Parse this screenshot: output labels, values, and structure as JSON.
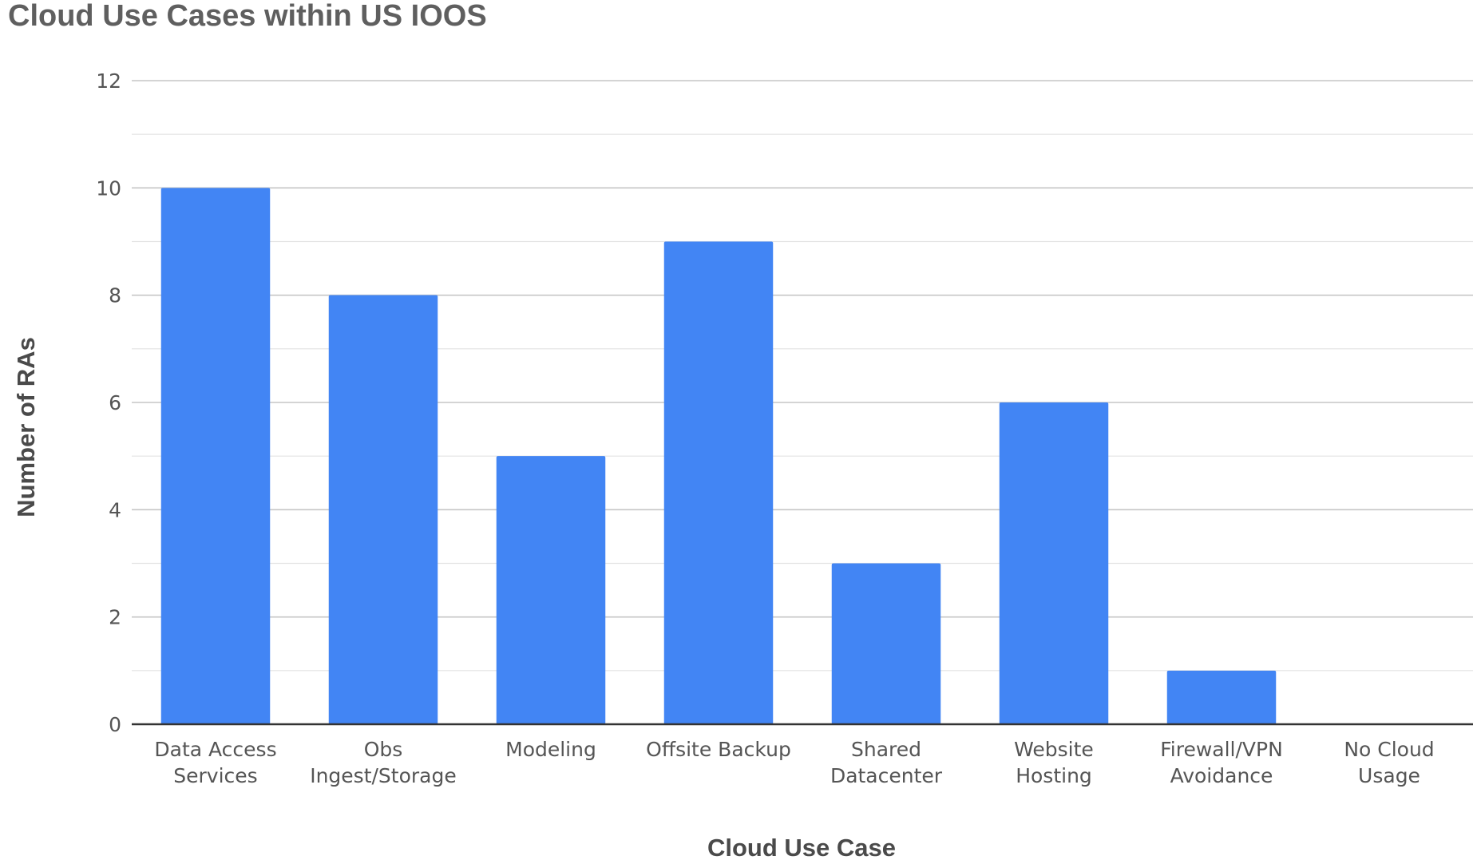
{
  "chart_data": {
    "type": "bar",
    "title": "Cloud Use Cases within US IOOS",
    "xlabel": "Cloud Use Case",
    "ylabel": "Number of RAs",
    "categories": [
      [
        "Data Access",
        "Services"
      ],
      [
        "Obs",
        "Ingest/Storage"
      ],
      [
        "Modeling"
      ],
      [
        "Offsite Backup"
      ],
      [
        "Shared",
        "Datacenter"
      ],
      [
        "Website",
        "Hosting"
      ],
      [
        "Firewall/VPN",
        "Avoidance"
      ],
      [
        "No Cloud",
        "Usage"
      ]
    ],
    "values": [
      10,
      8,
      5,
      9,
      3,
      6,
      1,
      0
    ],
    "ylim": [
      0,
      12
    ],
    "yticks": [
      "0",
      "2",
      "4",
      "6",
      "8",
      "10",
      "12"
    ],
    "grid": true,
    "legend": "none",
    "bar_color": "#4285f4"
  }
}
